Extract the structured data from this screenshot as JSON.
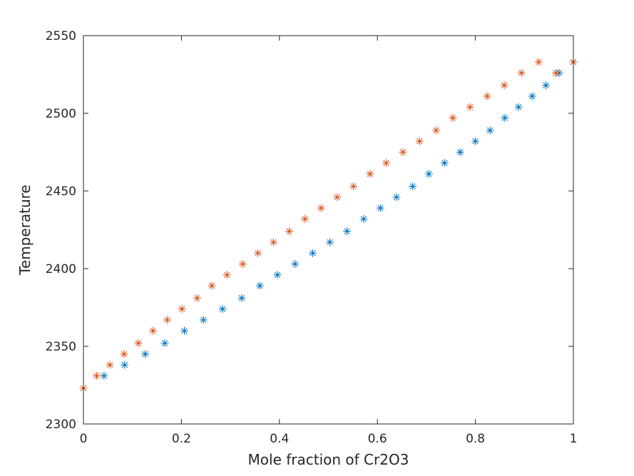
{
  "chart_data": {
    "type": "scatter",
    "xlabel": "Mole fraction of Cr2O3",
    "ylabel": "Temperature",
    "xlim": [
      0,
      1
    ],
    "ylim": [
      2300,
      2550
    ],
    "xticks": [
      0,
      0.2,
      0.4,
      0.6,
      0.8,
      1
    ],
    "xtick_labels": [
      "0",
      "0.2",
      "0.4",
      "0.6",
      "0.8",
      "1"
    ],
    "yticks": [
      2300,
      2350,
      2400,
      2450,
      2500,
      2550
    ],
    "ytick_labels": [
      "2300",
      "2350",
      "2400",
      "2450",
      "2500",
      "2550"
    ],
    "grid": false,
    "marker": "asterisk",
    "series": [
      {
        "color": "#0072BD",
        "x": [
          0.042,
          0.084,
          0.126,
          0.166,
          0.206,
          0.245,
          0.284,
          0.323,
          0.36,
          0.396,
          0.432,
          0.468,
          0.503,
          0.538,
          0.572,
          0.606,
          0.639,
          0.672,
          0.705,
          0.737,
          0.769,
          0.8,
          0.83,
          0.86,
          0.888,
          0.916,
          0.944,
          0.971,
          1.0
        ],
        "y": [
          2331,
          2338,
          2345,
          2352,
          2360,
          2367,
          2374,
          2381,
          2389,
          2396,
          2403,
          2410,
          2417,
          2424,
          2432,
          2439,
          2446,
          2453,
          2461,
          2468,
          2475,
          2482,
          2489,
          2497,
          2504,
          2511,
          2518,
          2526,
          2533
        ]
      },
      {
        "color": "#D95319",
        "x": [
          0.0,
          0.027,
          0.054,
          0.083,
          0.112,
          0.142,
          0.171,
          0.201,
          0.232,
          0.262,
          0.293,
          0.325,
          0.356,
          0.388,
          0.42,
          0.452,
          0.485,
          0.518,
          0.551,
          0.585,
          0.618,
          0.652,
          0.686,
          0.72,
          0.754,
          0.789,
          0.824,
          0.859,
          0.894,
          0.929,
          0.964,
          1.0
        ],
        "y": [
          2323,
          2331,
          2338,
          2345,
          2352,
          2360,
          2367,
          2374,
          2381,
          2389,
          2396,
          2403,
          2410,
          2417,
          2424,
          2432,
          2439,
          2446,
          2453,
          2461,
          2468,
          2475,
          2482,
          2489,
          2497,
          2504,
          2511,
          2518,
          2526,
          2533,
          2526,
          2533
        ]
      }
    ]
  }
}
